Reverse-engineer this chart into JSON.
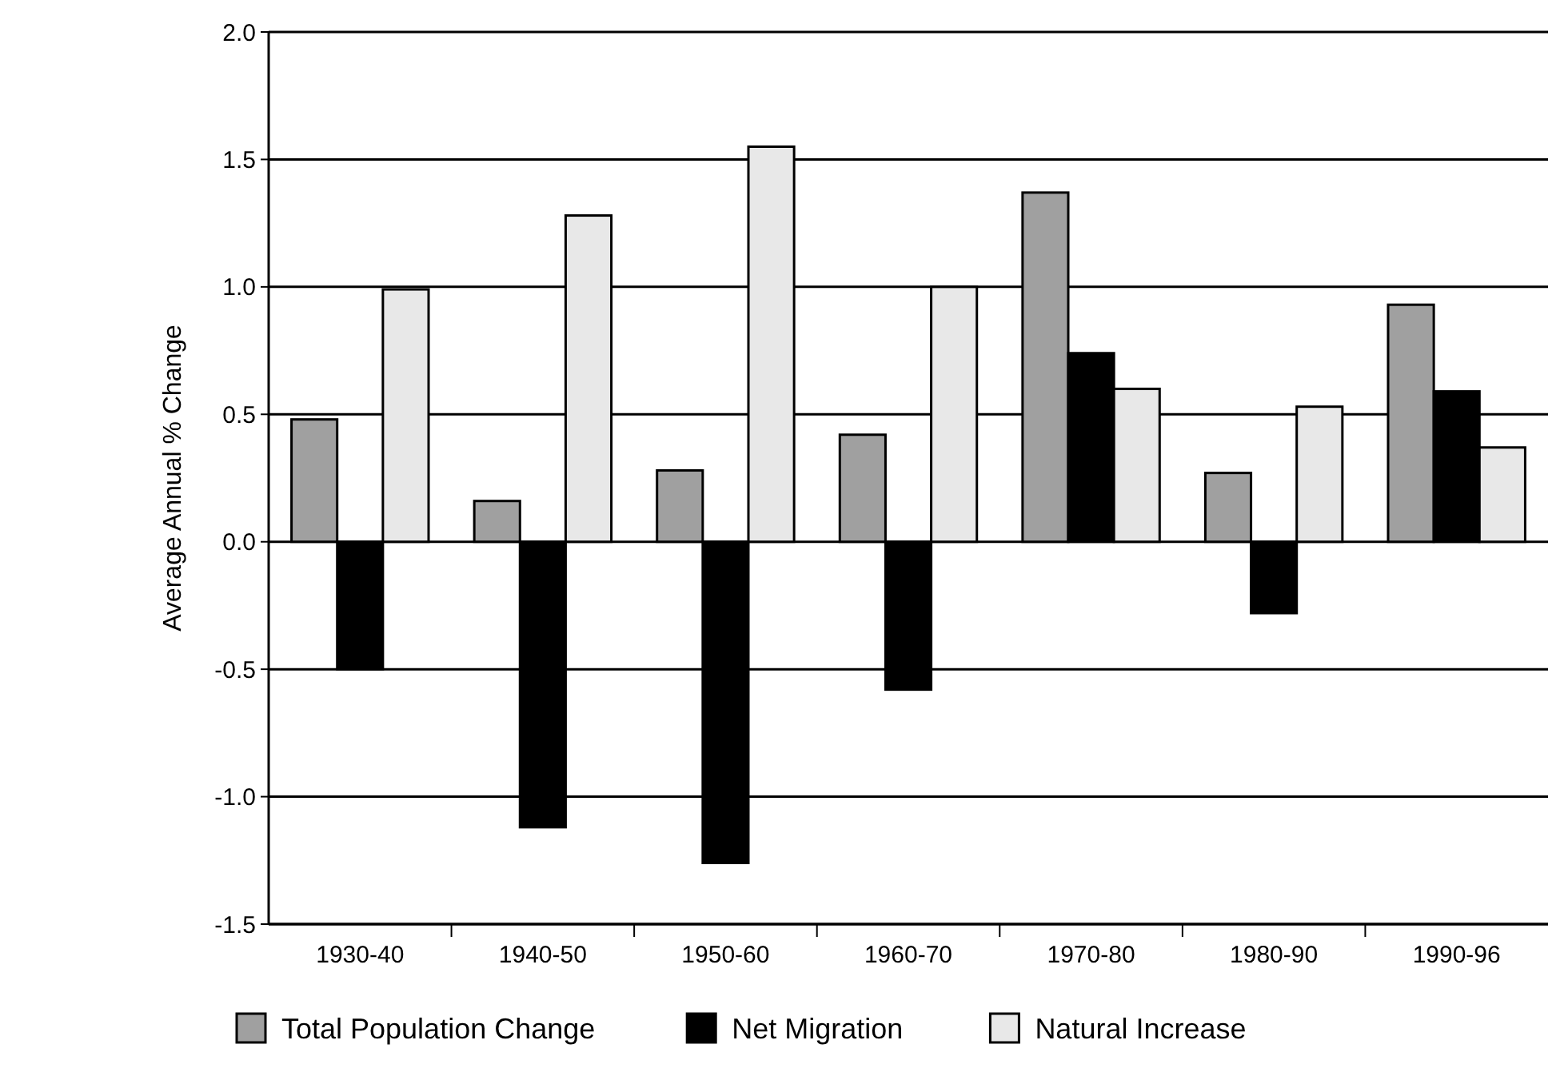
{
  "chart_data": {
    "type": "bar",
    "ylabel": "Average Annual %  Change",
    "categories": [
      "1930-40",
      "1940-50",
      "1950-60",
      "1960-70",
      "1970-80",
      "1980-90",
      "1990-96"
    ],
    "series": [
      {
        "name": "Total Population Change",
        "color": "#a0a0a0",
        "values": [
          0.48,
          0.16,
          0.28,
          0.42,
          1.37,
          0.27,
          0.93
        ]
      },
      {
        "name": "Net Migration",
        "color": "#000000",
        "values": [
          -0.5,
          -1.12,
          -1.26,
          -0.58,
          0.74,
          -0.28,
          0.59
        ]
      },
      {
        "name": "Natural Increase",
        "color": "#e8e8e8",
        "values": [
          0.99,
          1.28,
          1.55,
          1.0,
          0.6,
          0.53,
          0.37
        ]
      }
    ],
    "ylim": [
      -1.5,
      2.0
    ],
    "yticks": [
      {
        "value": -1.5,
        "label": "-1.5"
      },
      {
        "value": -1.0,
        "label": "-1.0"
      },
      {
        "value": -0.5,
        "label": "-0.5"
      },
      {
        "value": 0,
        "label": "0.0"
      },
      {
        "value": 0.5,
        "label": "0.5"
      },
      {
        "value": 1.0,
        "label": "1.0"
      },
      {
        "value": 1.5,
        "label": "1.5"
      },
      {
        "value": 2.0,
        "label": "2.0"
      }
    ],
    "grid": "y",
    "legend": "bottom"
  }
}
